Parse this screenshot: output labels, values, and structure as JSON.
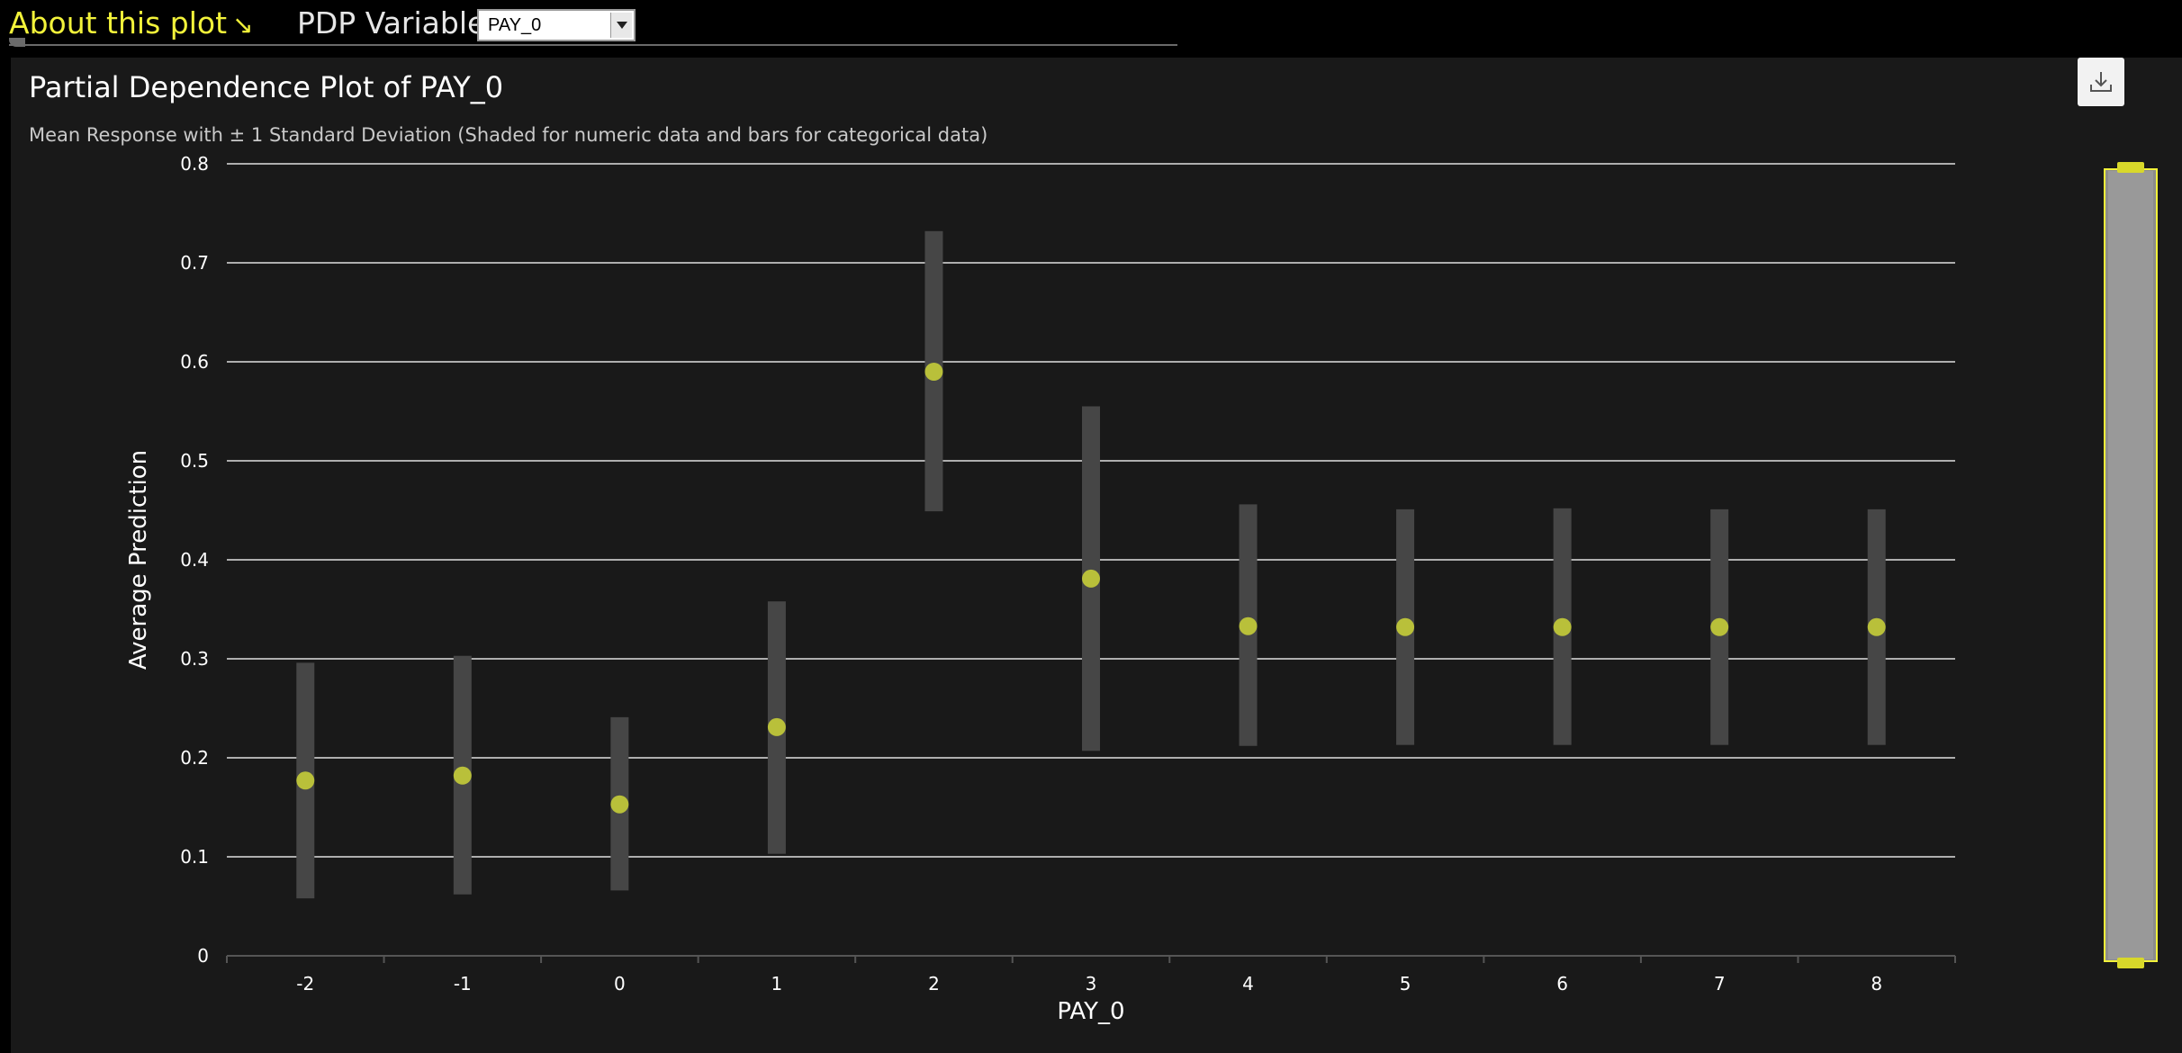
{
  "header": {
    "about_link": "About this plot",
    "about_arrow": "↘",
    "pdp_label": "PDP Variable:",
    "pdp_value": "PAY_0"
  },
  "colors": {
    "accent": "#f2f23a",
    "point": "#b9c03a",
    "error_bar": "#464646",
    "panel_bg": "#191919"
  },
  "icons": {
    "download": "download-icon"
  },
  "chart_data": {
    "type": "scatter",
    "title": "Partial Dependence Plot of PAY_0",
    "subtitle": "Mean Response with ± 1 Standard Deviation (Shaded for numeric data and bars for categorical data)",
    "xlabel": "PAY_0",
    "ylabel": "Average Prediction",
    "categories": [
      "-2",
      "-1",
      "0",
      "1",
      "2",
      "3",
      "4",
      "5",
      "6",
      "7",
      "8"
    ],
    "mean": [
      0.177,
      0.182,
      0.153,
      0.231,
      0.59,
      0.381,
      0.333,
      0.332,
      0.332,
      0.332,
      0.332
    ],
    "lower": [
      0.058,
      0.062,
      0.066,
      0.103,
      0.449,
      0.207,
      0.212,
      0.213,
      0.213,
      0.213,
      0.213
    ],
    "upper": [
      0.296,
      0.303,
      0.241,
      0.358,
      0.732,
      0.555,
      0.456,
      0.451,
      0.452,
      0.451,
      0.451
    ],
    "yticks": [
      "0",
      "0.1",
      "0.2",
      "0.3",
      "0.4",
      "0.5",
      "0.6",
      "0.7",
      "0.8"
    ],
    "ylim": [
      0,
      0.8
    ],
    "grid": true,
    "legend": false
  }
}
